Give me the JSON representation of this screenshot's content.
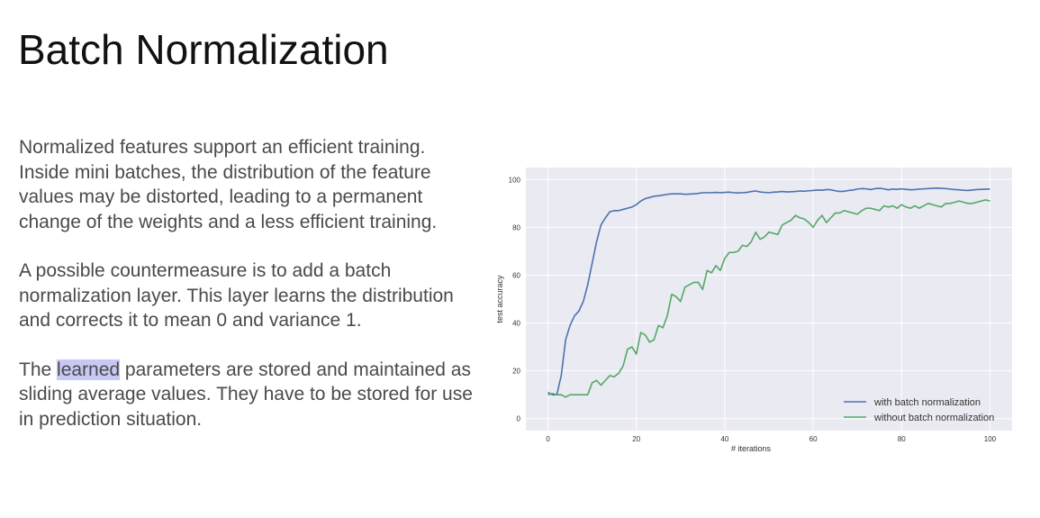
{
  "slide": {
    "title": "Batch Normalization",
    "paragraphs": [
      {
        "text": "Normalized features support an efficient training. Inside mini batches, the distribution of the feature values may be distorted, leading to a permanent change of the weights and a less efficient training."
      },
      {
        "text": "A possible countermeasure is to add a batch normalization layer. This layer learns the distribution and corrects it to mean 0 and variance 1."
      },
      {
        "before": "The ",
        "highlight": "learned",
        "after": " parameters are stored and maintained as sliding average values. They have to be stored for use in prediction situation."
      }
    ]
  },
  "colors": {
    "plot_background": "#eaeaf2",
    "grid": "#ffffff",
    "series_bn": "#4c72b0",
    "series_no_bn": "#55a868",
    "highlight": "#c8c8f5"
  },
  "chart_data": {
    "type": "line",
    "title": "",
    "xlabel": "# iterations",
    "ylabel": "test accuracy",
    "xlim": [
      -5,
      105
    ],
    "ylim": [
      -5,
      105
    ],
    "xticks": [
      0,
      20,
      40,
      60,
      80,
      100
    ],
    "yticks": [
      0,
      20,
      40,
      60,
      80,
      100
    ],
    "grid": true,
    "legend_position": "bottom-right",
    "x": [
      0,
      1,
      2,
      3,
      4,
      5,
      6,
      7,
      8,
      9,
      10,
      11,
      12,
      13,
      14,
      15,
      16,
      17,
      18,
      19,
      20,
      21,
      22,
      23,
      24,
      25,
      26,
      27,
      28,
      29,
      30,
      31,
      32,
      33,
      34,
      35,
      36,
      37,
      38,
      39,
      40,
      41,
      42,
      43,
      44,
      45,
      46,
      47,
      48,
      49,
      50,
      51,
      52,
      53,
      54,
      55,
      56,
      57,
      58,
      59,
      60,
      61,
      62,
      63,
      64,
      65,
      66,
      67,
      68,
      69,
      70,
      71,
      72,
      73,
      74,
      75,
      76,
      77,
      78,
      79,
      80,
      81,
      82,
      83,
      84,
      85,
      86,
      87,
      88,
      89,
      90,
      91,
      92,
      93,
      94,
      95,
      96,
      97,
      98,
      99,
      100
    ],
    "series": [
      {
        "name": "with batch normalization",
        "values": [
          11,
          10,
          10,
          18,
          33,
          39,
          43,
          45,
          49,
          56,
          65,
          74,
          81,
          84,
          86.5,
          87,
          87,
          87.5,
          88,
          88.5,
          89.5,
          91,
          92,
          92.5,
          93,
          93.2,
          93.5,
          93.8,
          94,
          94,
          94,
          93.8,
          93.9,
          94,
          94.2,
          94.5,
          94.5,
          94.5,
          94.6,
          94.5,
          94.6,
          94.7,
          94.5,
          94.4,
          94.5,
          94.6,
          95,
          95.2,
          94.8,
          94.6,
          94.5,
          94.7,
          94.8,
          95,
          94.8,
          94.9,
          95,
          95.2,
          95.1,
          95.3,
          95.4,
          95.6,
          95.5,
          95.8,
          95.7,
          95.3,
          95,
          95.1,
          95.4,
          95.6,
          96,
          96.2,
          96.1,
          95.8,
          96.2,
          96.3,
          96.1,
          95.7,
          96,
          95.9,
          96.1,
          95.9,
          95.7,
          95.8,
          96,
          96.1,
          96.2,
          96.3,
          96.4,
          96.3,
          96.2,
          96,
          95.8,
          95.7,
          95.5,
          95.4,
          95.6,
          95.8,
          95.9,
          96,
          96
        ]
      },
      {
        "name": "without batch normalization",
        "values": [
          10,
          10.5,
          10,
          10,
          9,
          10,
          10,
          10,
          10,
          10,
          15,
          16,
          14,
          16,
          18,
          17.5,
          19,
          22,
          29,
          30,
          27,
          36,
          35,
          32,
          33,
          39,
          38,
          43,
          52,
          51,
          49,
          55,
          56,
          57,
          57,
          54,
          62,
          61,
          64,
          62,
          67,
          69.5,
          69.5,
          70,
          72.5,
          72,
          74,
          78,
          75,
          76,
          78,
          77.5,
          77,
          81,
          82,
          83,
          85,
          84,
          83.5,
          82,
          80,
          83,
          85,
          82,
          84,
          86,
          86,
          87,
          86.5,
          86,
          85.5,
          87,
          88,
          88,
          87.5,
          87,
          89,
          88.5,
          89,
          88,
          89.5,
          88.5,
          88,
          89,
          88,
          89,
          90,
          89.5,
          89,
          88.5,
          90,
          90,
          90.5,
          91,
          90.5,
          90,
          90,
          90.5,
          91,
          91.5,
          91
        ]
      }
    ]
  }
}
